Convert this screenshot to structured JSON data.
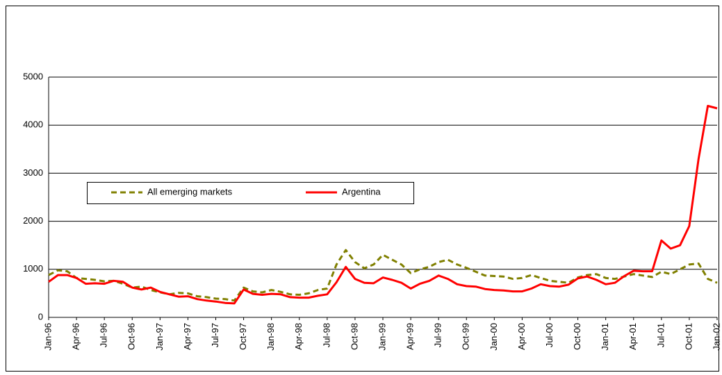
{
  "chart_data": {
    "type": "line",
    "categories": [
      "Jan-96",
      null,
      null,
      "Apr-96",
      null,
      null,
      "Jul-96",
      null,
      null,
      "Oct-96",
      null,
      null,
      "Jan-97",
      null,
      null,
      "Apr-97",
      null,
      null,
      "Jul-97",
      null,
      null,
      "Oct-97",
      null,
      null,
      "Jan-98",
      null,
      null,
      "Apr-98",
      null,
      null,
      "Jul-98",
      null,
      null,
      "Oct-98",
      null,
      null,
      "Jan-99",
      null,
      null,
      "Apr-99",
      null,
      null,
      "Jul-99",
      null,
      null,
      "Oct-99",
      null,
      null,
      "Jan-00",
      null,
      null,
      "Apr-00",
      null,
      null,
      "Jul-00",
      null,
      null,
      "Oct-00",
      null,
      null,
      "Jan-01",
      null,
      null,
      "Apr-01",
      null,
      null,
      "Jul-01",
      null,
      null,
      "Oct-01",
      null,
      null,
      "Jan-02"
    ],
    "series": [
      {
        "name": "All emerging markets",
        "color": "#808000",
        "dash": true,
        "values": [
          880,
          980,
          960,
          820,
          800,
          780,
          750,
          760,
          700,
          620,
          640,
          570,
          520,
          480,
          510,
          500,
          440,
          420,
          390,
          380,
          350,
          620,
          540,
          520,
          570,
          530,
          480,
          470,
          500,
          570,
          600,
          1100,
          1400,
          1150,
          1020,
          1100,
          1300,
          1200,
          1100,
          920,
          1000,
          1050,
          1150,
          1200,
          1100,
          1030,
          950,
          870,
          860,
          850,
          800,
          820,
          880,
          820,
          760,
          740,
          720,
          830,
          880,
          900,
          820,
          800,
          850,
          900,
          870,
          840,
          950,
          900,
          1000,
          1100,
          1120,
          800,
          720
        ]
      },
      {
        "name": "Argentina",
        "color": "#ff0000",
        "dash": false,
        "values": [
          740,
          880,
          880,
          820,
          700,
          710,
          700,
          760,
          740,
          620,
          580,
          620,
          530,
          480,
          430,
          440,
          380,
          350,
          330,
          300,
          290,
          580,
          490,
          470,
          490,
          480,
          420,
          410,
          410,
          450,
          480,
          730,
          1050,
          800,
          720,
          710,
          830,
          780,
          720,
          600,
          700,
          760,
          870,
          800,
          690,
          650,
          640,
          590,
          570,
          560,
          540,
          540,
          600,
          690,
          650,
          640,
          680,
          810,
          850,
          780,
          690,
          720,
          860,
          970,
          960,
          960,
          1600,
          1430,
          1500,
          1900,
          3300,
          4400,
          4350
        ]
      }
    ],
    "ylim": [
      0,
      5000
    ],
    "yticks": [
      0,
      1000,
      2000,
      3000,
      4000,
      5000
    ],
    "grid": true
  }
}
